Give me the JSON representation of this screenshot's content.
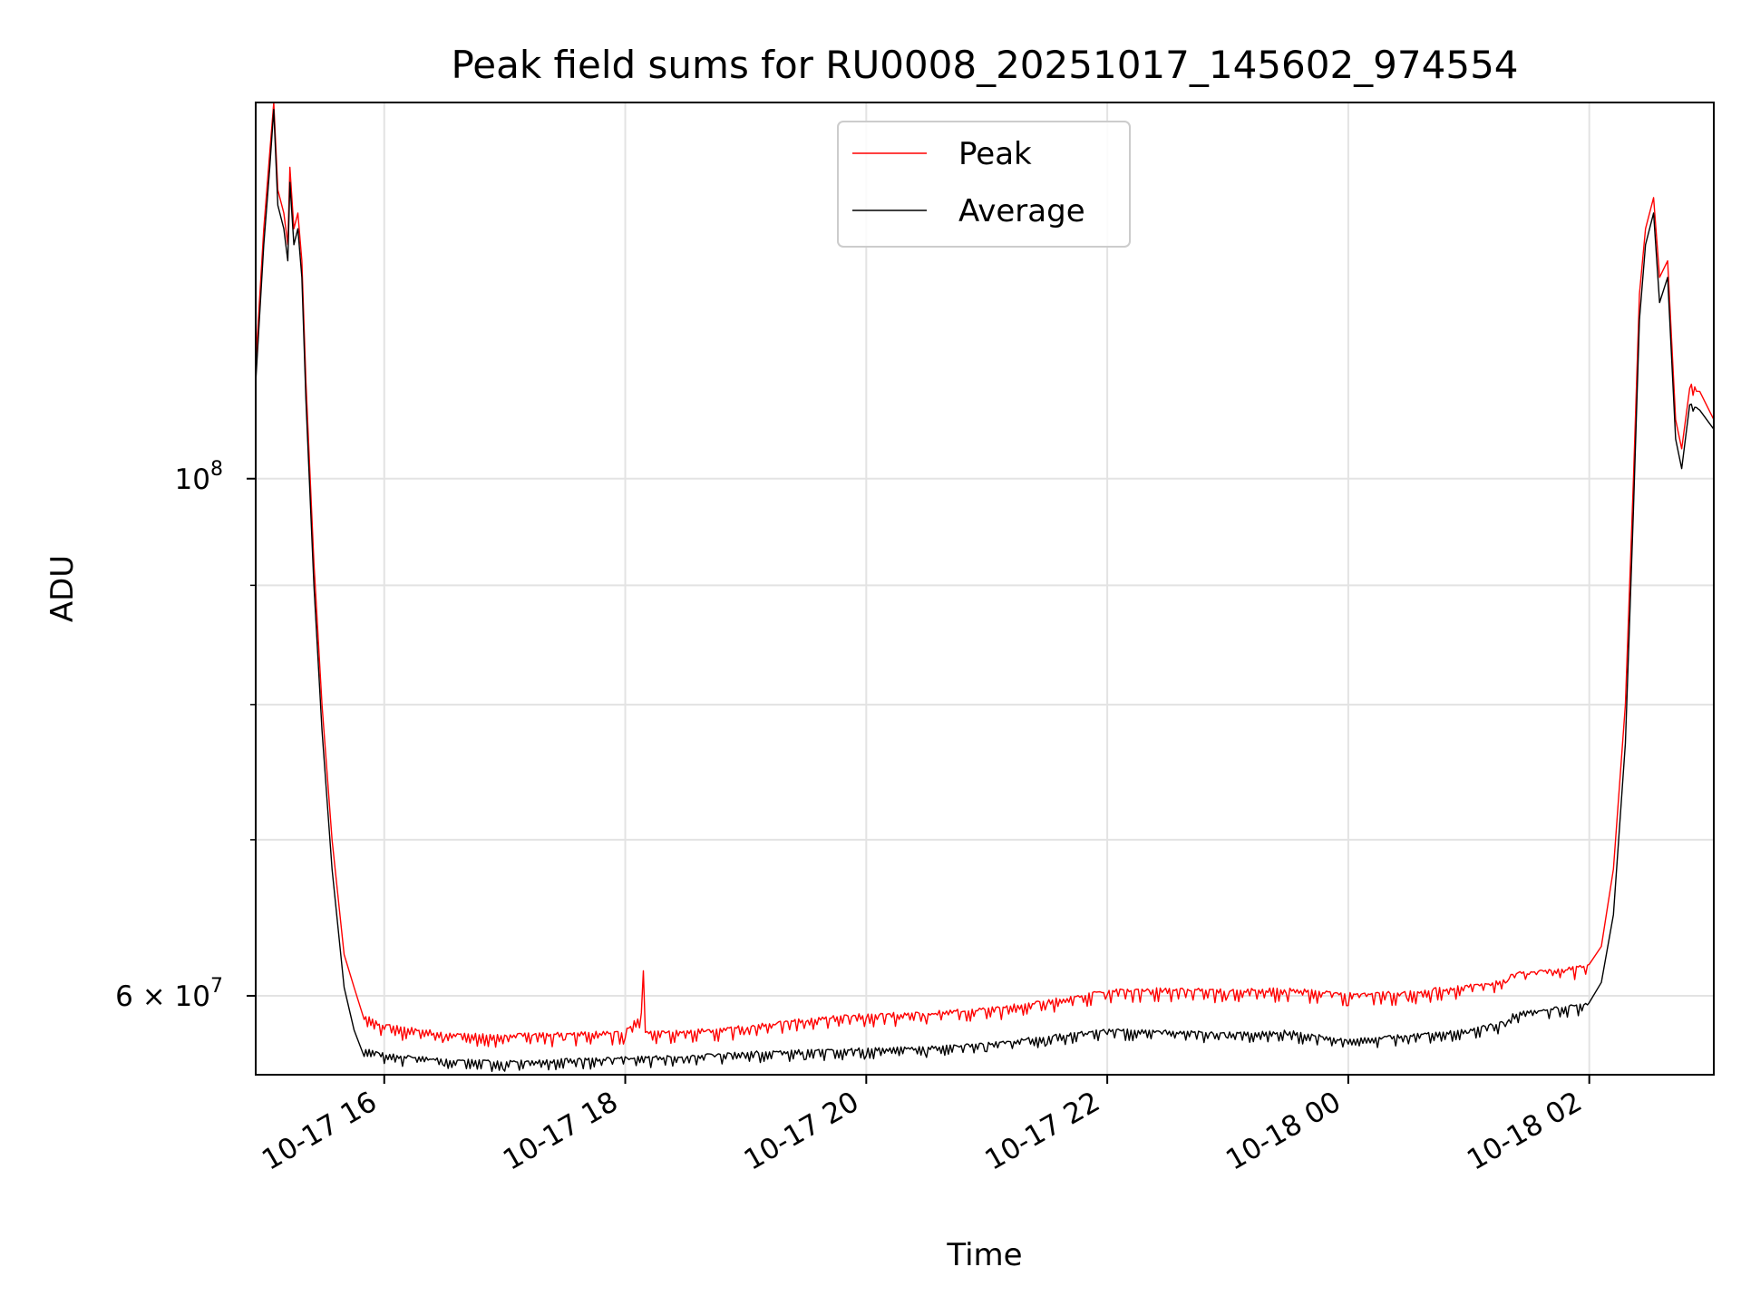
{
  "chart_data": {
    "type": "line",
    "title": "Peak field sums for RU0008_20251017_145602_974554",
    "xlabel": "Time",
    "ylabel": "ADU",
    "yscale": "log",
    "ylim": [
      55500000,
      145000000
    ],
    "xlim": [
      "2025-10-17 14:56",
      "2025-10-18 03:02"
    ],
    "grid": true,
    "legend_placement": "upper center",
    "x_ticks": [
      {
        "label": "10-17 16",
        "t": "2025-10-17 16:00"
      },
      {
        "label": "10-17 18",
        "t": "2025-10-17 18:00"
      },
      {
        "label": "10-17 20",
        "t": "2025-10-17 20:00"
      },
      {
        "label": "10-17 22",
        "t": "2025-10-17 22:00"
      },
      {
        "label": "10-18 00",
        "t": "2025-10-18 00:00"
      },
      {
        "label": "10-18 02",
        "t": "2025-10-18 02:00"
      }
    ],
    "y_ticks_major": [
      {
        "value": 100000000,
        "base": "10",
        "exp": "8"
      },
      {
        "value": 60000000,
        "base": "6 × 10",
        "exp": "7"
      }
    ],
    "y_ticks_minor": [
      70000000,
      80000000,
      90000000
    ],
    "series": [
      {
        "name": "Peak",
        "color": "#ff0000",
        "x": [
          "2025-10-17 14:56",
          "2025-10-17 15:00",
          "2025-10-17 15:03",
          "2025-10-17 15:05",
          "2025-10-17 15:07",
          "2025-10-17 15:10",
          "2025-10-17 15:12",
          "2025-10-17 15:13",
          "2025-10-17 15:15",
          "2025-10-17 15:17",
          "2025-10-17 15:19",
          "2025-10-17 15:21",
          "2025-10-17 15:25",
          "2025-10-17 15:29",
          "2025-10-17 15:34",
          "2025-10-17 15:40",
          "2025-10-17 15:45",
          "2025-10-17 15:50",
          "2025-10-17 15:55",
          "2025-10-17 16:00",
          "2025-10-17 16:30",
          "2025-10-17 17:00",
          "2025-10-17 17:30",
          "2025-10-17 18:00",
          "2025-10-17 18:08",
          "2025-10-17 18:09",
          "2025-10-17 18:10",
          "2025-10-17 18:30",
          "2025-10-17 19:00",
          "2025-10-17 19:30",
          "2025-10-17 20:00",
          "2025-10-17 20:30",
          "2025-10-17 21:00",
          "2025-10-17 21:30",
          "2025-10-17 22:00",
          "2025-10-17 22:30",
          "2025-10-17 23:00",
          "2025-10-17 23:30",
          "2025-10-18 00:00",
          "2025-10-18 00:30",
          "2025-10-18 01:00",
          "2025-10-18 01:20",
          "2025-10-18 01:21",
          "2025-10-18 01:40",
          "2025-10-18 02:00",
          "2025-10-18 02:06",
          "2025-10-18 02:12",
          "2025-10-18 02:18",
          "2025-10-18 02:22",
          "2025-10-18 02:25",
          "2025-10-18 02:28",
          "2025-10-18 02:32",
          "2025-10-18 02:35",
          "2025-10-18 02:39",
          "2025-10-18 02:43",
          "2025-10-18 02:46",
          "2025-10-18 02:50",
          "2025-10-18 02:55",
          "2025-10-18 03:02"
        ],
        "y": [
          112000000,
          128000000,
          138000000,
          146000000,
          133000000,
          130000000,
          126000000,
          136000000,
          128000000,
          130000000,
          124000000,
          110000000,
          92000000,
          80000000,
          70000000,
          62500000,
          60500000,
          59000000,
          58600000,
          58400000,
          57900000,
          57800000,
          57900000,
          58000000,
          59000000,
          61500000,
          58000000,
          58000000,
          58300000,
          58700000,
          59000000,
          59100000,
          59300000,
          59800000,
          60400000,
          60500000,
          60400000,
          60500000,
          60200000,
          60300000,
          60700000,
          61000000,
          61400000,
          61600000,
          61900000,
          63000000,
          68000000,
          80000000,
          100000000,
          120000000,
          128000000,
          132000000,
          122000000,
          124000000,
          106000000,
          103000000,
          110000000,
          109000000,
          106000000
        ]
      },
      {
        "name": "Average",
        "color": "#000000",
        "x": [
          "2025-10-17 14:56",
          "2025-10-17 15:00",
          "2025-10-17 15:03",
          "2025-10-17 15:05",
          "2025-10-17 15:07",
          "2025-10-17 15:10",
          "2025-10-17 15:12",
          "2025-10-17 15:13",
          "2025-10-17 15:15",
          "2025-10-17 15:17",
          "2025-10-17 15:19",
          "2025-10-17 15:21",
          "2025-10-17 15:25",
          "2025-10-17 15:29",
          "2025-10-17 15:34",
          "2025-10-17 15:40",
          "2025-10-17 15:45",
          "2025-10-17 15:50",
          "2025-10-17 15:55",
          "2025-10-17 16:00",
          "2025-10-17 16:30",
          "2025-10-17 17:00",
          "2025-10-17 17:30",
          "2025-10-17 18:00",
          "2025-10-17 18:30",
          "2025-10-17 19:00",
          "2025-10-17 19:30",
          "2025-10-17 20:00",
          "2025-10-17 20:30",
          "2025-10-17 21:00",
          "2025-10-17 21:30",
          "2025-10-17 22:00",
          "2025-10-17 22:30",
          "2025-10-17 23:00",
          "2025-10-17 23:30",
          "2025-10-18 00:00",
          "2025-10-18 00:30",
          "2025-10-18 01:00",
          "2025-10-18 01:20",
          "2025-10-18 01:21",
          "2025-10-18 01:40",
          "2025-10-18 02:00",
          "2025-10-18 02:06",
          "2025-10-18 02:12",
          "2025-10-18 02:18",
          "2025-10-18 02:22",
          "2025-10-18 02:25",
          "2025-10-18 02:28",
          "2025-10-18 02:32",
          "2025-10-18 02:35",
          "2025-10-18 02:39",
          "2025-10-18 02:43",
          "2025-10-18 02:46",
          "2025-10-18 02:50",
          "2025-10-18 02:55",
          "2025-10-18 03:02"
        ],
        "y": [
          110000000,
          126000000,
          136000000,
          144000000,
          131000000,
          128000000,
          124000000,
          134000000,
          126000000,
          128000000,
          122000000,
          108000000,
          90000000,
          78000000,
          68000000,
          60500000,
          58000000,
          57000000,
          56900000,
          56700000,
          56400000,
          56300000,
          56400000,
          56500000,
          56600000,
          56800000,
          56900000,
          57000000,
          57100000,
          57300000,
          57700000,
          58100000,
          58000000,
          57900000,
          58000000,
          57500000,
          57800000,
          58100000,
          58600000,
          59000000,
          59300000,
          59600000,
          60800000,
          65000000,
          77000000,
          97000000,
          117000000,
          126000000,
          130000000,
          119000000,
          122000000,
          104000000,
          101000000,
          108000000,
          107000000,
          105000000
        ]
      }
    ]
  }
}
